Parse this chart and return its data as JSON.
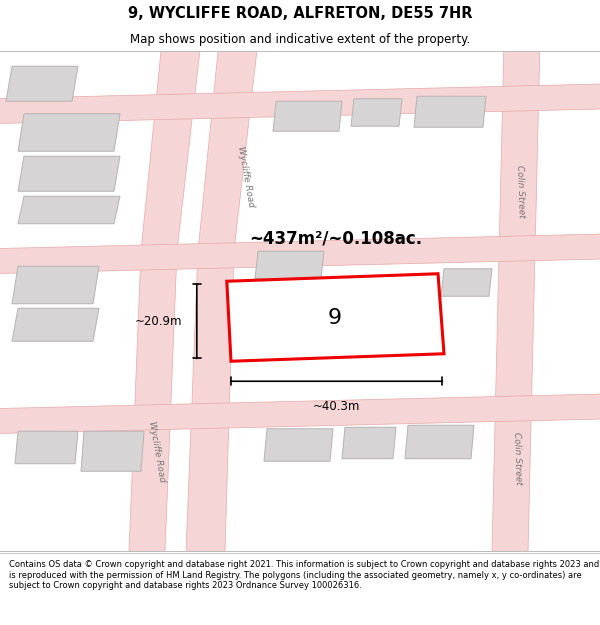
{
  "title": "9, WYCLIFFE ROAD, ALFRETON, DE55 7HR",
  "subtitle": "Map shows position and indicative extent of the property.",
  "footer": "Contains OS data © Crown copyright and database right 2021. This information is subject to Crown copyright and database rights 2023 and is reproduced with the permission of HM Land Registry. The polygons (including the associated geometry, namely x, y co-ordinates) are subject to Crown copyright and database rights 2023 Ordnance Survey 100026316.",
  "map_bg": "#eeeded",
  "road_fill": "#f5d5d5",
  "road_edge": "#e8a8a8",
  "bld_fill": "#d6d4d4",
  "bld_edge": "#b8b2b2",
  "prop_color": "#ee0000",
  "prop_label": "9",
  "area_label": "~437m²/~0.108ac.",
  "width_label": "~40.3m",
  "height_label": "~20.9m",
  "label_wycliffe_upper": "Wycliffe Road",
  "label_wycliffe_lower": "Wycliffe Road",
  "label_colin_upper": "Colin Street",
  "label_colin_lower": "Colin Street"
}
